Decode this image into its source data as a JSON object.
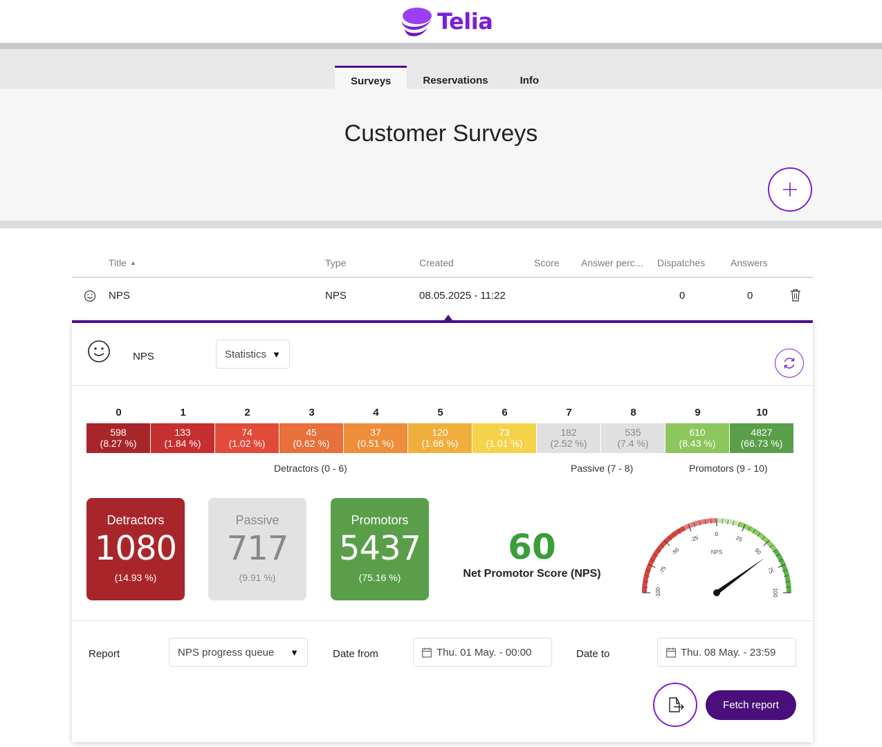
{
  "brand": {
    "name": "Telia",
    "color": "#7a1fd6"
  },
  "nav": {
    "tabs": [
      {
        "label": "Surveys",
        "active": true
      },
      {
        "label": "Reservations",
        "active": false
      },
      {
        "label": "Info",
        "active": false
      }
    ]
  },
  "page": {
    "title": "Customer Surveys",
    "add_icon": "plus-icon"
  },
  "table": {
    "headers": {
      "title": "Title",
      "type": "Type",
      "created": "Created",
      "score": "Score",
      "answer_percent": "Answer perc...",
      "dispatches": "Dispatches",
      "answers": "Answers"
    },
    "rows": [
      {
        "icon": "smiley-icon",
        "title": "NPS",
        "type": "NPS",
        "created": "08.05.2025 - 11:22",
        "score": "",
        "answer_percent": "",
        "dispatches": "0",
        "answers": "0",
        "delete_icon": "trash-icon"
      }
    ]
  },
  "detail": {
    "name": "NPS",
    "view_select": "Statistics",
    "scale": [
      {
        "score": "0",
        "count": "598",
        "pct": "(8.27 %)",
        "color": "#a8262a"
      },
      {
        "score": "1",
        "count": "133",
        "pct": "(1.84 %)",
        "color": "#c62f2f"
      },
      {
        "score": "2",
        "count": "74",
        "pct": "(1.02 %)",
        "color": "#e24b39"
      },
      {
        "score": "3",
        "count": "45",
        "pct": "(0.62 %)",
        "color": "#e8703a"
      },
      {
        "score": "4",
        "count": "37",
        "pct": "(0.51 %)",
        "color": "#ee8d3a"
      },
      {
        "score": "5",
        "count": "120",
        "pct": "(1.66 %)",
        "color": "#f0ae3c"
      },
      {
        "score": "6",
        "count": "73",
        "pct": "(1.01 %)",
        "color": "#f4d34a"
      },
      {
        "score": "7",
        "count": "182",
        "pct": "(2.52 %)",
        "color": "#e0e0e0"
      },
      {
        "score": "8",
        "count": "535",
        "pct": "(7.4 %)",
        "color": "#e0e0e0"
      },
      {
        "score": "9",
        "count": "610",
        "pct": "(8.43 %)",
        "color": "#8cc65c"
      },
      {
        "score": "10",
        "count": "4827",
        "pct": "(66.73 %)",
        "color": "#5b9e4a"
      }
    ],
    "groups": {
      "detractors": "Detractors (0 - 6)",
      "passive": "Passive (7 - 8)",
      "promotors": "Promotors (9 - 10)"
    },
    "cards": [
      {
        "title": "Detractors",
        "value": "1080",
        "pct": "(14.93 %)",
        "color": "#a8262a"
      },
      {
        "title": "Passive",
        "value": "717",
        "pct": "(9.91 %)",
        "color": "#e2e2e2"
      },
      {
        "title": "Promotors",
        "value": "5437",
        "pct": "(75.16 %)",
        "color": "#5b9e4a"
      }
    ],
    "nps": {
      "score": "60",
      "label": "Net Promotor Score (NPS)"
    },
    "gauge": {
      "value": 60,
      "min": -100,
      "max": 100,
      "center_label": "NPS",
      "tick_labels": [
        "-100",
        "-75",
        "-50",
        "-25",
        "0",
        "25",
        "50",
        "75",
        "100"
      ]
    },
    "report": {
      "label": "Report",
      "selected": "NPS progress queue",
      "date_from_label": "Date from",
      "date_from": "Thu. 01 May. - 00:00",
      "date_to_label": "Date to",
      "date_to": "Thu. 08 May. - 23:59",
      "export_icon": "export-icon",
      "fetch_label": "Fetch report"
    }
  }
}
